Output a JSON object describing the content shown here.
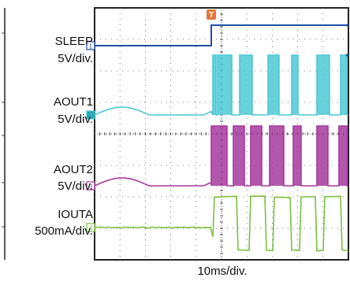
{
  "chart_data": {
    "type": "line",
    "xlabel": "10ms/div.",
    "grid": true,
    "trigger_marker": "T",
    "channels": [
      {
        "id": "1",
        "name": "SLEEP",
        "scale": "5V/div.",
        "color": "#1f4fa3",
        "kind": "step",
        "low_before_trigger": true,
        "high_after_trigger": true
      },
      {
        "id": "2",
        "name": "AOUT1",
        "scale": "5V/div.",
        "color": "#4cc9d6",
        "kind": "pwm_after_trigger",
        "pre_trigger": "sinusoidal"
      },
      {
        "id": "3",
        "name": "AOUT2",
        "scale": "5V/div.",
        "color": "#a6399e",
        "kind": "pwm_after_trigger",
        "pre_trigger": "sinusoidal"
      },
      {
        "id": "4",
        "name": "IOUTA",
        "scale": "500mA/div.",
        "color": "#7bc043",
        "kind": "square_after_trigger",
        "pre_trigger": "flat"
      }
    ]
  }
}
